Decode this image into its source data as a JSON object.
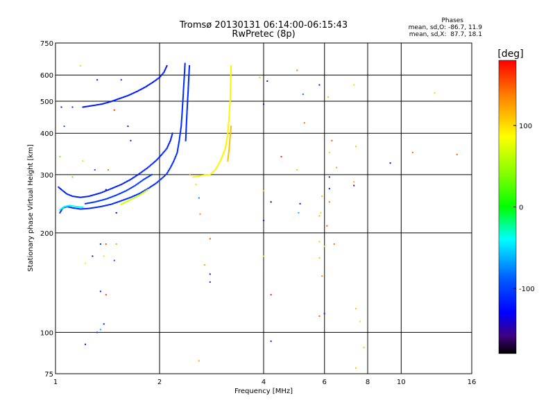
{
  "chart_data": {
    "type": "scatter",
    "title": "Tromsø 20130131 06:14:00-06:15:43",
    "subtitle": "RwPretec (8p)",
    "xlabel": "Frequency [MHz]",
    "ylabel": "Stationary phase Virtual Height [km]",
    "x_scale": "log",
    "y_scale": "log",
    "xlim": [
      1,
      16
    ],
    "ylim": [
      75,
      750
    ],
    "x_ticks": [
      1,
      2,
      4,
      6,
      8,
      10,
      16
    ],
    "y_ticks": [
      75,
      100,
      200,
      300,
      400,
      500,
      600,
      750
    ],
    "x_grid": [
      2,
      4,
      6,
      8,
      10
    ],
    "y_grid": [
      100,
      200,
      300,
      400,
      500,
      600
    ],
    "stats": {
      "heading": "Phases",
      "line1": "mean, sd,O: -86.7, 11.9",
      "line2": "mean, sd,X:  87.7, 18.1"
    },
    "colorbar": {
      "unit": "[deg]",
      "range": [
        -180,
        180
      ],
      "ticks": [
        "100",
        "0",
        "-100"
      ],
      "tick_values": [
        100,
        0,
        -100
      ]
    },
    "traces": [
      {
        "phase": -110,
        "points": [
          [
            1.03,
            230
          ],
          [
            1.05,
            238
          ],
          [
            1.08,
            240
          ],
          [
            1.12,
            238
          ],
          [
            1.18,
            236
          ],
          [
            1.25,
            237
          ],
          [
            1.35,
            240
          ],
          [
            1.45,
            244
          ],
          [
            1.55,
            250
          ],
          [
            1.65,
            256
          ],
          [
            1.75,
            263
          ],
          [
            1.85,
            272
          ],
          [
            1.95,
            282
          ],
          [
            2.03,
            292
          ],
          [
            2.1,
            302
          ],
          [
            2.15,
            315
          ],
          [
            2.2,
            330
          ],
          [
            2.25,
            350
          ],
          [
            2.28,
            380
          ],
          [
            2.31,
            420
          ],
          [
            2.33,
            480
          ],
          [
            2.35,
            560
          ],
          [
            2.37,
            650
          ]
        ]
      },
      {
        "phase": -115,
        "points": [
          [
            1.02,
            275
          ],
          [
            1.05,
            268
          ],
          [
            1.08,
            262
          ],
          [
            1.12,
            258
          ],
          [
            1.18,
            256
          ],
          [
            1.25,
            258
          ],
          [
            1.35,
            264
          ],
          [
            1.45,
            272
          ],
          [
            1.55,
            280
          ],
          [
            1.65,
            290
          ],
          [
            1.75,
            302
          ],
          [
            1.85,
            315
          ],
          [
            1.95,
            330
          ],
          [
            2.03,
            345
          ],
          [
            2.1,
            360
          ],
          [
            2.15,
            380
          ],
          [
            2.18,
            400
          ]
        ]
      },
      {
        "phase": -118,
        "points": [
          [
            1.2,
            480
          ],
          [
            1.28,
            485
          ],
          [
            1.36,
            490
          ],
          [
            1.44,
            498
          ],
          [
            1.52,
            508
          ],
          [
            1.62,
            520
          ],
          [
            1.72,
            535
          ],
          [
            1.82,
            552
          ],
          [
            1.92,
            572
          ],
          [
            2.0,
            590
          ],
          [
            2.06,
            612
          ],
          [
            2.1,
            640
          ]
        ]
      },
      {
        "phase": -112,
        "points": [
          [
            2.38,
            380
          ],
          [
            2.39,
            420
          ],
          [
            2.4,
            460
          ],
          [
            2.41,
            500
          ],
          [
            2.42,
            540
          ],
          [
            2.43,
            590
          ],
          [
            2.44,
            640
          ]
        ]
      },
      {
        "phase": -105,
        "points": [
          [
            1.22,
            245
          ],
          [
            1.3,
            248
          ],
          [
            1.4,
            253
          ],
          [
            1.5,
            260
          ],
          [
            1.6,
            268
          ],
          [
            1.7,
            278
          ],
          [
            1.8,
            290
          ],
          [
            1.9,
            300
          ]
        ]
      },
      {
        "phase": -40,
        "points": [
          [
            1.03,
            235
          ],
          [
            1.06,
            240
          ],
          [
            1.1,
            242
          ],
          [
            1.15,
            240
          ],
          [
            1.2,
            239
          ]
        ]
      },
      {
        "phase": 90,
        "points": [
          [
            2.5,
            295
          ],
          [
            2.6,
            297
          ],
          [
            2.7,
            299
          ],
          [
            2.8,
            300
          ],
          [
            2.9,
            310
          ],
          [
            3.0,
            330
          ],
          [
            3.1,
            360
          ],
          [
            3.15,
            400
          ],
          [
            3.18,
            450
          ],
          [
            3.2,
            500
          ],
          [
            3.21,
            560
          ],
          [
            3.22,
            640
          ]
        ]
      },
      {
        "phase": 110,
        "points": [
          [
            3.15,
            330
          ],
          [
            3.18,
            360
          ],
          [
            3.2,
            390
          ],
          [
            3.22,
            420
          ]
        ]
      },
      {
        "phase": 70,
        "points": [
          [
            1.55,
            244
          ],
          [
            1.65,
            252
          ],
          [
            1.75,
            260
          ],
          [
            1.85,
            270
          ]
        ]
      }
    ],
    "scattered": [
      {
        "x": 1.18,
        "y": 640,
        "phase": 60
      },
      {
        "x": 1.32,
        "y": 580,
        "phase": -120
      },
      {
        "x": 1.55,
        "y": 580,
        "phase": -110
      },
      {
        "x": 1.04,
        "y": 480,
        "phase": -120
      },
      {
        "x": 1.12,
        "y": 480,
        "phase": -110
      },
      {
        "x": 1.48,
        "y": 470,
        "phase": 160
      },
      {
        "x": 1.06,
        "y": 420,
        "phase": -90
      },
      {
        "x": 1.62,
        "y": 420,
        "phase": -120
      },
      {
        "x": 1.65,
        "y": 380,
        "phase": -120
      },
      {
        "x": 1.03,
        "y": 340,
        "phase": 30
      },
      {
        "x": 1.2,
        "y": 330,
        "phase": 60
      },
      {
        "x": 1.3,
        "y": 310,
        "phase": -90
      },
      {
        "x": 1.42,
        "y": 310,
        "phase": 140
      },
      {
        "x": 1.12,
        "y": 295,
        "phase": 20
      },
      {
        "x": 1.4,
        "y": 270,
        "phase": -150
      },
      {
        "x": 1.5,
        "y": 230,
        "phase": -130
      },
      {
        "x": 1.35,
        "y": 185,
        "phase": -110
      },
      {
        "x": 1.4,
        "y": 185,
        "phase": 150
      },
      {
        "x": 1.5,
        "y": 185,
        "phase": 120
      },
      {
        "x": 1.22,
        "y": 162,
        "phase": 80
      },
      {
        "x": 1.28,
        "y": 170,
        "phase": -150
      },
      {
        "x": 1.38,
        "y": 170,
        "phase": 100
      },
      {
        "x": 1.48,
        "y": 165,
        "phase": -90
      },
      {
        "x": 1.35,
        "y": 133,
        "phase": -110
      },
      {
        "x": 1.4,
        "y": 130,
        "phase": 160
      },
      {
        "x": 1.38,
        "y": 106,
        "phase": -120
      },
      {
        "x": 1.35,
        "y": 102,
        "phase": -60
      },
      {
        "x": 1.32,
        "y": 100,
        "phase": -100
      },
      {
        "x": 1.22,
        "y": 92,
        "phase": -150
      },
      {
        "x": 2.45,
        "y": 300,
        "phase": 120
      },
      {
        "x": 2.55,
        "y": 280,
        "phase": 100
      },
      {
        "x": 2.6,
        "y": 255,
        "phase": -80
      },
      {
        "x": 2.62,
        "y": 228,
        "phase": 130
      },
      {
        "x": 2.8,
        "y": 192,
        "phase": 150
      },
      {
        "x": 2.7,
        "y": 160,
        "phase": 120
      },
      {
        "x": 2.8,
        "y": 150,
        "phase": -120
      },
      {
        "x": 2.8,
        "y": 142,
        "phase": -110
      },
      {
        "x": 2.6,
        "y": 82,
        "phase": 120
      },
      {
        "x": 3.9,
        "y": 590,
        "phase": 110
      },
      {
        "x": 4.1,
        "y": 575,
        "phase": -160
      },
      {
        "x": 4.0,
        "y": 490,
        "phase": -120
      },
      {
        "x": 4.5,
        "y": 340,
        "phase": 170
      },
      {
        "x": 4.0,
        "y": 268,
        "phase": 110
      },
      {
        "x": 4.2,
        "y": 248,
        "phase": -170
      },
      {
        "x": 4.0,
        "y": 218,
        "phase": -120
      },
      {
        "x": 4.0,
        "y": 170,
        "phase": 100
      },
      {
        "x": 4.2,
        "y": 130,
        "phase": 170
      },
      {
        "x": 4.2,
        "y": 94,
        "phase": -120
      },
      {
        "x": 5.0,
        "y": 620,
        "phase": 140
      },
      {
        "x": 5.2,
        "y": 525,
        "phase": -80
      },
      {
        "x": 5.25,
        "y": 430,
        "phase": 140
      },
      {
        "x": 5.0,
        "y": 310,
        "phase": 110
      },
      {
        "x": 5.1,
        "y": 245,
        "phase": -140
      },
      {
        "x": 5.05,
        "y": 230,
        "phase": -60
      },
      {
        "x": 5.8,
        "y": 560,
        "phase": -120
      },
      {
        "x": 6.15,
        "y": 515,
        "phase": 110
      },
      {
        "x": 6.3,
        "y": 380,
        "phase": 150
      },
      {
        "x": 6.2,
        "y": 350,
        "phase": 100
      },
      {
        "x": 6.5,
        "y": 315,
        "phase": 120
      },
      {
        "x": 6.2,
        "y": 295,
        "phase": -150
      },
      {
        "x": 6.2,
        "y": 272,
        "phase": -120
      },
      {
        "x": 5.9,
        "y": 258,
        "phase": 110
      },
      {
        "x": 6.2,
        "y": 248,
        "phase": 140
      },
      {
        "x": 5.85,
        "y": 230,
        "phase": 100
      },
      {
        "x": 5.8,
        "y": 225,
        "phase": 120
      },
      {
        "x": 6.1,
        "y": 210,
        "phase": 150
      },
      {
        "x": 5.8,
        "y": 188,
        "phase": 110
      },
      {
        "x": 6.0,
        "y": 182,
        "phase": 100
      },
      {
        "x": 6.4,
        "y": 185,
        "phase": 140
      },
      {
        "x": 5.8,
        "y": 168,
        "phase": 110
      },
      {
        "x": 5.9,
        "y": 148,
        "phase": 130
      },
      {
        "x": 6.0,
        "y": 114,
        "phase": -120
      },
      {
        "x": 5.8,
        "y": 112,
        "phase": 150
      },
      {
        "x": 7.3,
        "y": 560,
        "phase": 100
      },
      {
        "x": 7.4,
        "y": 365,
        "phase": 110
      },
      {
        "x": 7.3,
        "y": 285,
        "phase": 120
      },
      {
        "x": 7.3,
        "y": 278,
        "phase": -150
      },
      {
        "x": 7.4,
        "y": 118,
        "phase": 110
      },
      {
        "x": 7.6,
        "y": 108,
        "phase": 60
      },
      {
        "x": 7.8,
        "y": 90,
        "phase": 110
      },
      {
        "x": 7.4,
        "y": 78,
        "phase": 110
      },
      {
        "x": 9.3,
        "y": 325,
        "phase": -150
      },
      {
        "x": 10.8,
        "y": 350,
        "phase": 140
      },
      {
        "x": 12.5,
        "y": 530,
        "phase": 100
      },
      {
        "x": 14.5,
        "y": 345,
        "phase": 150
      }
    ]
  }
}
